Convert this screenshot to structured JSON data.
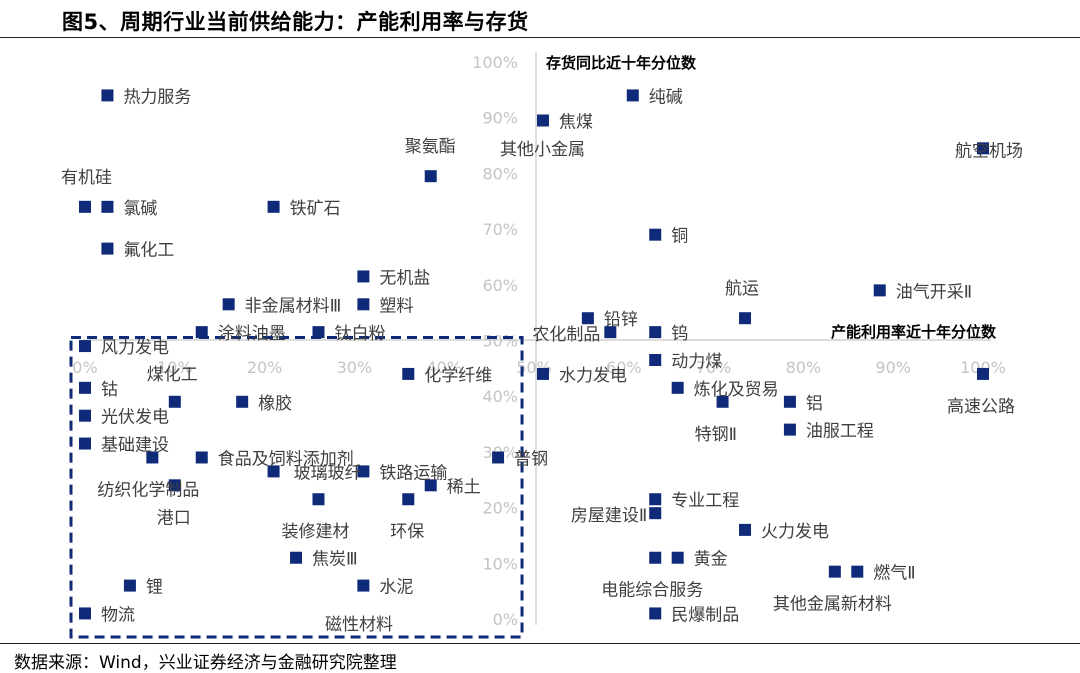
{
  "title": "图5、周期行业当前供给能力：产能利用率与存货",
  "source": "数据来源：Wind，兴业证券经济与金融研究院整理",
  "colors": {
    "marker": "#0f2a78",
    "axis": "#c8c8c8",
    "tick": "#c4c4c4",
    "label": "#404040",
    "box": "#0f2a78"
  },
  "chart_data": {
    "type": "scatter",
    "title": "",
    "xlabel": "产能利用率近十年分位数",
    "ylabel": "存货同比近十年分位数",
    "xlim": [
      0,
      100
    ],
    "ylim": [
      0,
      100
    ],
    "x_ticks": [
      "0%",
      "10%",
      "20%",
      "30%",
      "40%",
      "50%",
      "60%",
      "70%",
      "80%",
      "90%",
      "100%"
    ],
    "y_ticks": [
      "0%",
      "10%",
      "20%",
      "30%",
      "40%",
      "50%",
      "60%",
      "70%",
      "80%",
      "90%",
      "100%"
    ],
    "grid": false,
    "highlight_box": {
      "style": "dashed",
      "xlim": [
        0,
        48
      ],
      "ylim": [
        0,
        50
      ]
    },
    "points": [
      {
        "label": "热力服务",
        "x": 2.5,
        "y": 94
      },
      {
        "label": "纯碱",
        "x": 61,
        "y": 94
      },
      {
        "label": "焦煤",
        "x": 51,
        "y": 89.5
      },
      {
        "label": "其他小金属",
        "x": 0,
        "y": 0
      },
      {
        "label": "航空机场",
        "x": 100,
        "y": 84.5
      },
      {
        "label": "聚氨酯",
        "x": 38.5,
        "y": 79.5
      },
      {
        "label": "有机硅",
        "x": 0,
        "y": 74
      },
      {
        "label": "氯碱",
        "x": 2.5,
        "y": 74
      },
      {
        "label": "铁矿石",
        "x": 21,
        "y": 74
      },
      {
        "label": "铜",
        "x": 63.5,
        "y": 69
      },
      {
        "label": "氟化工",
        "x": 2.5,
        "y": 66.5
      },
      {
        "label": "无机盐",
        "x": 31,
        "y": 61.5
      },
      {
        "label": "非金属材料Ⅲ",
        "x": 16,
        "y": 56.5
      },
      {
        "label": "塑料",
        "x": 31,
        "y": 56.5
      },
      {
        "label": "油气开采Ⅱ",
        "x": 88.5,
        "y": 59
      },
      {
        "label": "航运",
        "x": 73.5,
        "y": 54
      },
      {
        "label": "铅锌",
        "x": 56,
        "y": 54
      },
      {
        "label": "涂料油墨",
        "x": 13,
        "y": 51.5
      },
      {
        "label": "钛白粉",
        "x": 26,
        "y": 51.5
      },
      {
        "label": "农化制品",
        "x": 58.5,
        "y": 51.5
      },
      {
        "label": "钨",
        "x": 63.5,
        "y": 51.5
      },
      {
        "label": "风力发电",
        "x": 0,
        "y": 49
      },
      {
        "label": "动力煤",
        "x": 63.5,
        "y": 46.5
      },
      {
        "label": "化学纤维",
        "x": 36,
        "y": 44
      },
      {
        "label": "水力发电",
        "x": 51,
        "y": 44
      },
      {
        "label": "高速公路",
        "x": 100,
        "y": 44
      },
      {
        "label": "钴",
        "x": 0,
        "y": 41.5
      },
      {
        "label": "炼化及贸易",
        "x": 66,
        "y": 41.5
      },
      {
        "label": "煤化工",
        "x": 10,
        "y": 39
      },
      {
        "label": "橡胶",
        "x": 17.5,
        "y": 39
      },
      {
        "label": "特钢Ⅱ",
        "x": 71,
        "y": 39
      },
      {
        "label": "铝",
        "x": 78.5,
        "y": 39
      },
      {
        "label": "光伏发电",
        "x": 0,
        "y": 36.5
      },
      {
        "label": "基础建设",
        "x": 0,
        "y": 31.5
      },
      {
        "label": "油服工程",
        "x": 78.5,
        "y": 34
      },
      {
        "label": "食品及饲料添加剂",
        "x": 13,
        "y": 29
      },
      {
        "label": "纺织化学制品",
        "x": 7.5,
        "y": 29
      },
      {
        "label": "普钢",
        "x": 46,
        "y": 29
      },
      {
        "label": "玻璃玻纤",
        "x": 21,
        "y": 26.5
      },
      {
        "label": "铁路运输",
        "x": 31,
        "y": 26.5
      },
      {
        "label": "港口",
        "x": 10,
        "y": 24
      },
      {
        "label": "稀土",
        "x": 38.5,
        "y": 24
      },
      {
        "label": "装修建材",
        "x": 26,
        "y": 21.5
      },
      {
        "label": "环保",
        "x": 36,
        "y": 21.5
      },
      {
        "label": "专业工程",
        "x": 63.5,
        "y": 21.5
      },
      {
        "label": "房屋建设Ⅱ",
        "x": 63.5,
        "y": 19
      },
      {
        "label": "火力发电",
        "x": 73.5,
        "y": 16
      },
      {
        "label": "焦炭Ⅲ",
        "x": 23.5,
        "y": 11
      },
      {
        "label": "黄金",
        "x": 66,
        "y": 11
      },
      {
        "label": "电能综合服务",
        "x": 63.5,
        "y": 11
      },
      {
        "label": "燃气Ⅱ",
        "x": 86,
        "y": 8.5
      },
      {
        "label": "其他金属新材料",
        "x": 83.5,
        "y": 8.5
      },
      {
        "label": "锂",
        "x": 5,
        "y": 6
      },
      {
        "label": "水泥",
        "x": 31,
        "y": 6
      },
      {
        "label": "物流",
        "x": 0,
        "y": 1
      },
      {
        "label": "磁性材料",
        "x": 0,
        "y": 0
      },
      {
        "label": "民爆制品",
        "x": 63.5,
        "y": 1
      }
    ]
  }
}
